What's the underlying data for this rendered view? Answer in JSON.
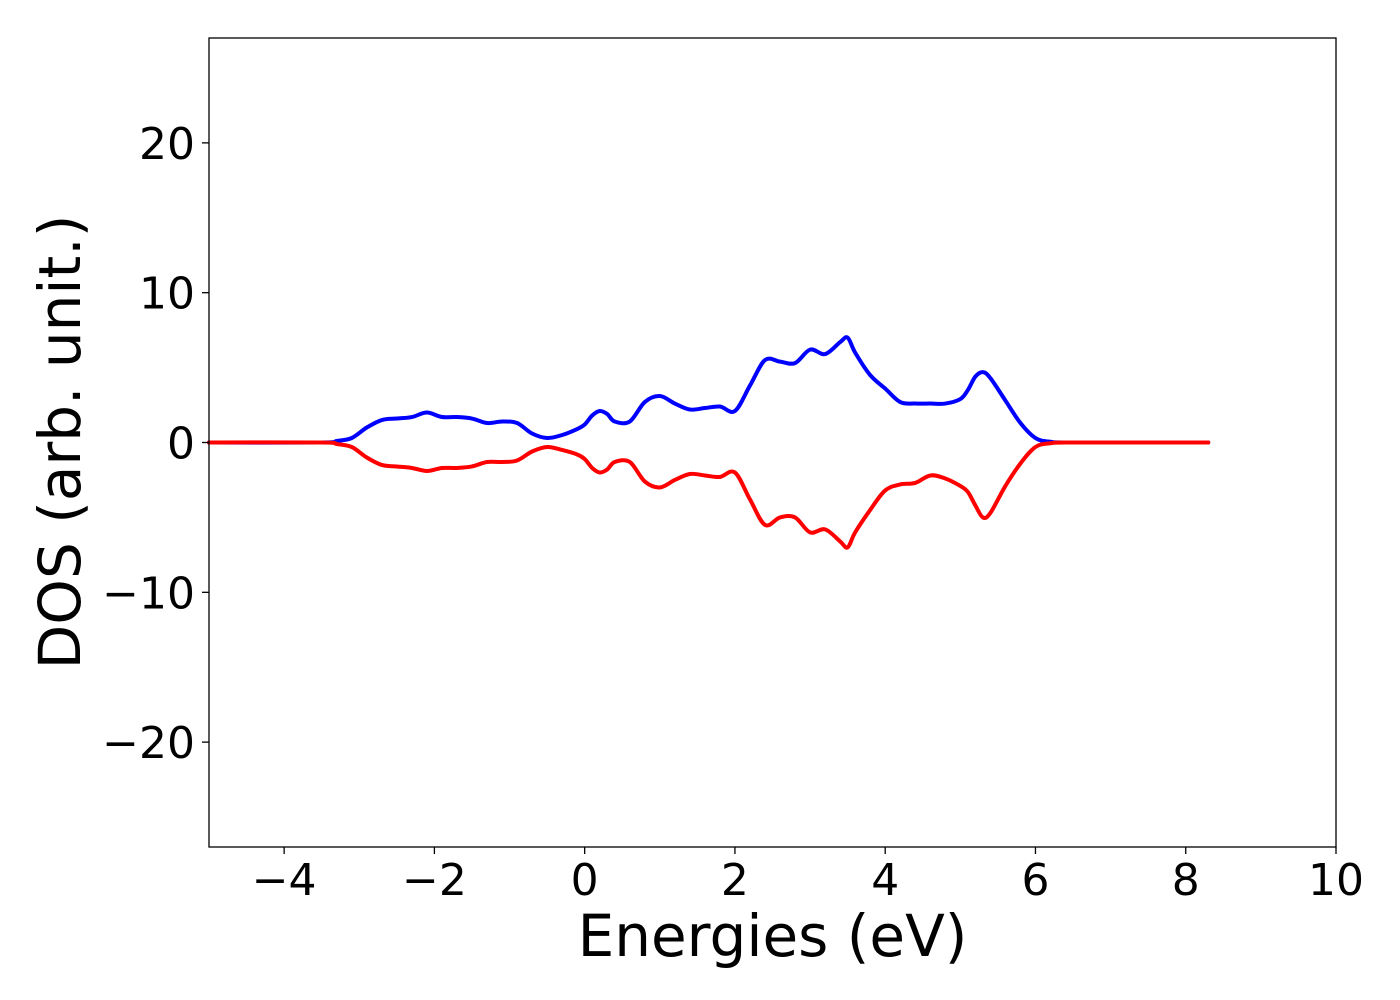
{
  "chart_data": {
    "type": "line",
    "title": "",
    "xlabel": "Energies (eV)",
    "ylabel": "DOS (arb. unit.)",
    "xlim": [
      -5,
      10
    ],
    "ylim": [
      -27,
      27
    ],
    "xticks": [
      -4,
      -2,
      0,
      2,
      4,
      6,
      8,
      10
    ],
    "yticks": [
      -20,
      -10,
      0,
      10,
      20
    ],
    "xtick_labels": [
      "−4",
      "−2",
      "0",
      "2",
      "4",
      "6",
      "8",
      "10"
    ],
    "ytick_labels": [
      "−20",
      "−10",
      "0",
      "10",
      "20"
    ],
    "grid": false,
    "legend": "none",
    "series": [
      {
        "color": "#0000ff",
        "x": [
          -5.0,
          -3.5,
          -3.3,
          -3.1,
          -2.9,
          -2.7,
          -2.5,
          -2.3,
          -2.1,
          -1.9,
          -1.7,
          -1.5,
          -1.3,
          -1.1,
          -0.9,
          -0.7,
          -0.5,
          -0.3,
          -0.1,
          0.0,
          0.1,
          0.2,
          0.3,
          0.4,
          0.6,
          0.8,
          1.0,
          1.2,
          1.4,
          1.6,
          1.8,
          2.0,
          2.2,
          2.4,
          2.6,
          2.8,
          3.0,
          3.2,
          3.4,
          3.5,
          3.6,
          3.8,
          4.0,
          4.2,
          4.4,
          4.6,
          4.8,
          5.0,
          5.1,
          5.2,
          5.3,
          5.4,
          5.6,
          5.8,
          6.0,
          6.2,
          6.5,
          8.3
        ],
        "values": [
          0,
          0,
          0.1,
          0.3,
          1.0,
          1.5,
          1.6,
          1.7,
          2.0,
          1.7,
          1.7,
          1.6,
          1.3,
          1.4,
          1.3,
          0.6,
          0.3,
          0.5,
          0.9,
          1.2,
          1.8,
          2.1,
          1.9,
          1.4,
          1.4,
          2.7,
          3.1,
          2.6,
          2.2,
          2.3,
          2.4,
          2.1,
          3.8,
          5.5,
          5.4,
          5.3,
          6.2,
          5.9,
          6.7,
          7.0,
          6.0,
          4.5,
          3.6,
          2.7,
          2.6,
          2.6,
          2.6,
          2.9,
          3.5,
          4.4,
          4.7,
          4.3,
          2.8,
          1.3,
          0.3,
          0.05,
          0,
          0
        ]
      },
      {
        "color": "#ff0000",
        "x": [
          -5.0,
          -3.5,
          -3.3,
          -3.1,
          -2.9,
          -2.7,
          -2.5,
          -2.3,
          -2.1,
          -1.9,
          -1.7,
          -1.5,
          -1.3,
          -1.1,
          -0.9,
          -0.7,
          -0.5,
          -0.3,
          -0.1,
          0.0,
          0.1,
          0.2,
          0.3,
          0.4,
          0.6,
          0.8,
          1.0,
          1.2,
          1.4,
          1.6,
          1.8,
          2.0,
          2.2,
          2.4,
          2.6,
          2.8,
          3.0,
          3.2,
          3.4,
          3.5,
          3.6,
          3.8,
          4.0,
          4.2,
          4.4,
          4.6,
          4.8,
          5.0,
          5.1,
          5.2,
          5.3,
          5.4,
          5.6,
          5.8,
          6.0,
          6.2,
          6.5,
          8.3
        ],
        "values": [
          0,
          0,
          -0.1,
          -0.3,
          -1.0,
          -1.5,
          -1.6,
          -1.7,
          -1.9,
          -1.7,
          -1.7,
          -1.6,
          -1.3,
          -1.3,
          -1.2,
          -0.6,
          -0.3,
          -0.5,
          -0.8,
          -1.1,
          -1.7,
          -2.0,
          -1.8,
          -1.3,
          -1.3,
          -2.6,
          -3.0,
          -2.5,
          -2.1,
          -2.2,
          -2.3,
          -2.0,
          -3.8,
          -5.5,
          -5.0,
          -5.0,
          -6.0,
          -5.8,
          -6.6,
          -7.0,
          -6.0,
          -4.5,
          -3.2,
          -2.8,
          -2.7,
          -2.2,
          -2.4,
          -2.9,
          -3.3,
          -4.2,
          -5.0,
          -4.7,
          -2.9,
          -1.4,
          -0.3,
          -0.05,
          0,
          0
        ]
      }
    ]
  }
}
